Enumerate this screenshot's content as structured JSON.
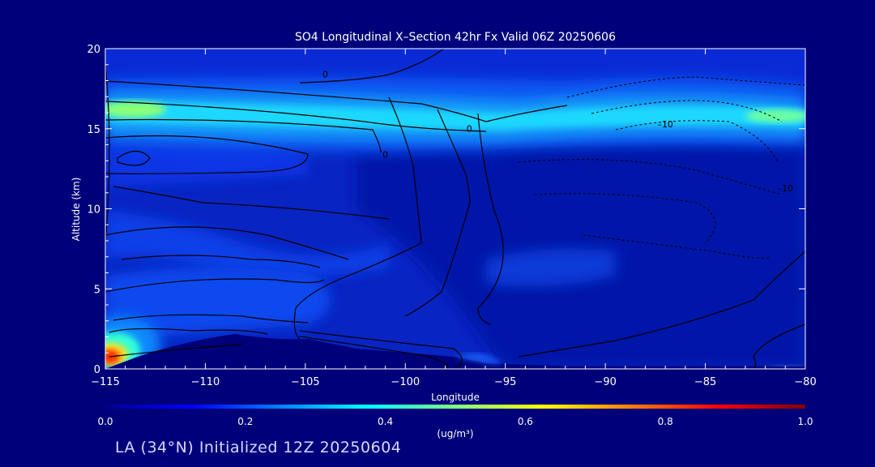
{
  "chart_data": {
    "type": "heatmap",
    "title": "SO4 Longitudinal X–Section 42hr  Fx Valid 06Z 20250606",
    "xlabel": "Longitude",
    "ylabel": "Altitude (km)",
    "xlim": [
      -115,
      -80
    ],
    "ylim": [
      0,
      20
    ],
    "x_ticks": [
      -115,
      -110,
      -105,
      -100,
      -95,
      -90,
      -85,
      -80
    ],
    "y_ticks": [
      0,
      5,
      10,
      15,
      20
    ],
    "colorbar": {
      "label": "(ug/m³)",
      "range": [
        0.0,
        1.0
      ],
      "ticks": [
        "0.0",
        "0.2",
        "0.4",
        "0.6",
        "0.8",
        "1.0"
      ],
      "colormap": "jet"
    },
    "field_features": [
      {
        "feature": "upper layer",
        "altitude_km": [
          14,
          17.5
        ],
        "value": 0.4
      },
      {
        "feature": "upper layer peak west",
        "longitude": -114,
        "altitude_km": 16,
        "value": 0.52
      },
      {
        "feature": "upper layer peak east",
        "longitude": -81,
        "altitude_km": 15.5,
        "value": 0.48
      },
      {
        "feature": "surface plume",
        "longitude": -115,
        "altitude_km": 0.5,
        "value": 0.9
      },
      {
        "feature": "background",
        "value": 0.1
      }
    ],
    "contour_labels": [
      {
        "text": "0",
        "x": -104,
        "y": 18.2
      },
      {
        "text": "–10",
        "x": -87,
        "y": 15.1
      },
      {
        "text": "–10",
        "x": -81,
        "y": 11.1
      },
      {
        "text": "0",
        "x": -96.8,
        "y": 14.8
      },
      {
        "text": "0",
        "x": -101,
        "y": 13.2
      }
    ]
  },
  "footer": {
    "location_line": "LA (34°N) Initialized 12Z 20250604"
  },
  "colors": {
    "background": "#00007a",
    "contour": "#000000"
  }
}
